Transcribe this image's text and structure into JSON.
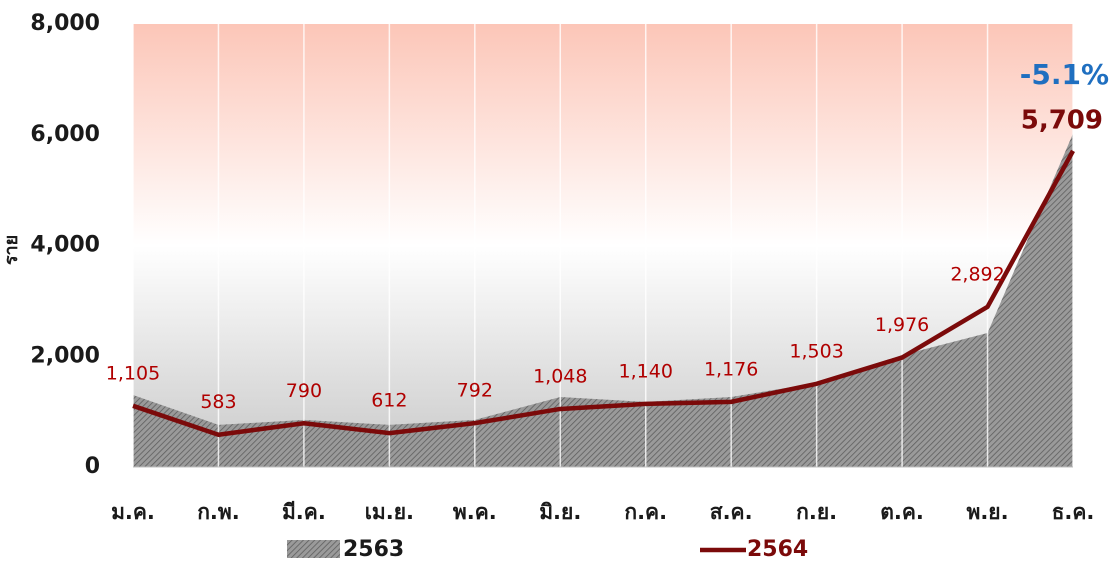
{
  "chart_data": {
    "type": "area-line",
    "y_label": "ราย",
    "categories": [
      "ม.ค.",
      "ก.พ.",
      "มี.ค.",
      "เม.ย.",
      "พ.ค.",
      "มิ.ย.",
      "ก.ค.",
      "ส.ค.",
      "ก.ย.",
      "ต.ค.",
      "พ.ย.",
      "ธ.ค."
    ],
    "series": [
      {
        "name": "2563",
        "color": "#8a8a8a",
        "values": [
          1300,
          760,
          850,
          760,
          850,
          1265,
          1175,
          1265,
          1517,
          2022,
          2420,
          6020
        ]
      },
      {
        "name": "2564",
        "color": "#7b0a0a",
        "values": [
          1105,
          583,
          790,
          612,
          792,
          1048,
          1140,
          1176,
          1503,
          1976,
          2892,
          5709
        ],
        "value_labels": [
          "1,105",
          "583",
          "790",
          "612",
          "792",
          "1,048",
          "1,140",
          "1,176",
          "1,503",
          "1,976",
          "2,892",
          "5,709"
        ]
      }
    ],
    "annotations": [
      {
        "text": "-5.1%",
        "color": "#1f6fc0"
      }
    ],
    "ylim": [
      0,
      8000
    ],
    "yticks": [
      0,
      {
        "value": 2000,
        "label": "2,000"
      },
      {
        "value": 4000,
        "label": "4,000"
      },
      {
        "value": 6000,
        "label": "6,000"
      },
      {
        "value": 8000,
        "label": "8,000"
      }
    ],
    "grid": true
  }
}
